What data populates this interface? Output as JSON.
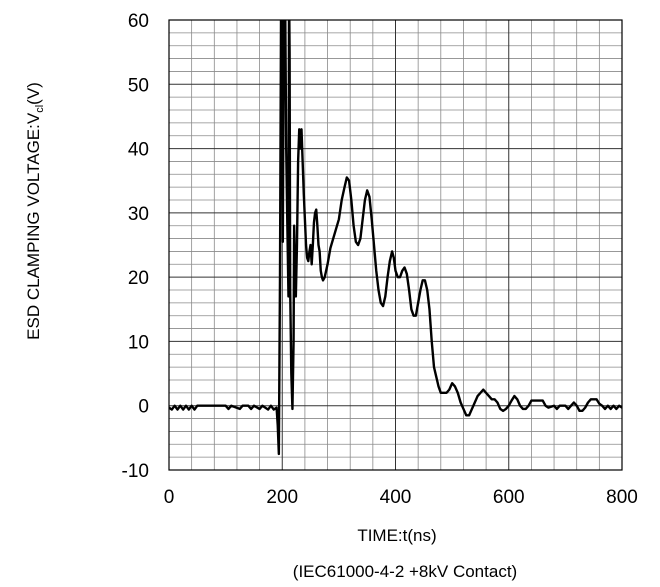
{
  "chart_data": {
    "type": "line",
    "title": "",
    "xlabel": "TIME:t(ns)",
    "ylabel": {
      "main": "ESD CLAMPING VOLTAGE:V",
      "subscript": "cl",
      "suffix": "(V)"
    },
    "note": "(IEC61000-4-2 +8kV Contact)",
    "xlim": [
      0,
      800
    ],
    "ylim": [
      -10,
      60
    ],
    "x_ticks": [
      "0",
      "200",
      "400",
      "600",
      "800"
    ],
    "y_ticks": [
      "-10",
      "0",
      "10",
      "20",
      "30",
      "40",
      "50",
      "60"
    ],
    "grid": true,
    "minor_grid": {
      "x_step": 40,
      "y_step": 2
    },
    "major_grid": {
      "x_step": 200,
      "y_step": 10
    },
    "line_color": "#000000",
    "series": [
      {
        "name": "",
        "points": [
          [
            0,
            -0.3
          ],
          [
            5,
            -0.6
          ],
          [
            10,
            0
          ],
          [
            15,
            -0.6
          ],
          [
            20,
            0
          ],
          [
            25,
            -0.6
          ],
          [
            30,
            0
          ],
          [
            35,
            -0.6
          ],
          [
            40,
            0
          ],
          [
            45,
            -0.6
          ],
          [
            50,
            0
          ],
          [
            100,
            0
          ],
          [
            105,
            -0.5
          ],
          [
            110,
            0
          ],
          [
            125,
            -0.5
          ],
          [
            130,
            0
          ],
          [
            140,
            0
          ],
          [
            145,
            -0.5
          ],
          [
            150,
            0
          ],
          [
            160,
            -0.5
          ],
          [
            165,
            0
          ],
          [
            175,
            -0.6
          ],
          [
            180,
            0
          ],
          [
            185,
            -0.6
          ],
          [
            190,
            -0.3
          ],
          [
            192,
            -3
          ],
          [
            194,
            -7.5
          ],
          [
            196,
            20
          ],
          [
            198,
            65
          ],
          [
            200,
            65
          ],
          [
            201,
            25.5
          ],
          [
            203,
            65
          ],
          [
            205,
            65
          ],
          [
            207,
            40
          ],
          [
            209,
            28
          ],
          [
            211,
            17
          ],
          [
            212,
            65
          ],
          [
            213,
            55
          ],
          [
            214,
            18
          ],
          [
            216,
            5
          ],
          [
            218,
            -0.5
          ],
          [
            220,
            10
          ],
          [
            221,
            28
          ],
          [
            223,
            20
          ],
          [
            224,
            17
          ],
          [
            226,
            25
          ],
          [
            228,
            38
          ],
          [
            230,
            43
          ],
          [
            232,
            40
          ],
          [
            234,
            43
          ],
          [
            236,
            38
          ],
          [
            238,
            33
          ],
          [
            240,
            29
          ],
          [
            242,
            25
          ],
          [
            244,
            23
          ],
          [
            246,
            22.5
          ],
          [
            248,
            24
          ],
          [
            250,
            25
          ],
          [
            252,
            22
          ],
          [
            254,
            25
          ],
          [
            256,
            28.5
          ],
          [
            258,
            30
          ],
          [
            260,
            30.5
          ],
          [
            262,
            28
          ],
          [
            264,
            25
          ],
          [
            266,
            24
          ],
          [
            268,
            21
          ],
          [
            270,
            20
          ],
          [
            272,
            19.5
          ],
          [
            275,
            20
          ],
          [
            280,
            22
          ],
          [
            285,
            24.5
          ],
          [
            290,
            26
          ],
          [
            295,
            27.5
          ],
          [
            300,
            29
          ],
          [
            305,
            32
          ],
          [
            310,
            34
          ],
          [
            314,
            35.5
          ],
          [
            318,
            35
          ],
          [
            322,
            32
          ],
          [
            326,
            28
          ],
          [
            330,
            25.5
          ],
          [
            334,
            25
          ],
          [
            338,
            26
          ],
          [
            342,
            29
          ],
          [
            346,
            32
          ],
          [
            350,
            33.5
          ],
          [
            354,
            32.5
          ],
          [
            358,
            29
          ],
          [
            362,
            25
          ],
          [
            366,
            21
          ],
          [
            370,
            18
          ],
          [
            374,
            16
          ],
          [
            378,
            15.5
          ],
          [
            382,
            17
          ],
          [
            386,
            20
          ],
          [
            390,
            22.5
          ],
          [
            394,
            24
          ],
          [
            397,
            23
          ],
          [
            400,
            21
          ],
          [
            404,
            20
          ],
          [
            408,
            20
          ],
          [
            412,
            21
          ],
          [
            416,
            21.5
          ],
          [
            420,
            20.5
          ],
          [
            424,
            18
          ],
          [
            428,
            15
          ],
          [
            432,
            14
          ],
          [
            436,
            14
          ],
          [
            440,
            16
          ],
          [
            444,
            18
          ],
          [
            448,
            19.5
          ],
          [
            452,
            19.5
          ],
          [
            456,
            18
          ],
          [
            460,
            15
          ],
          [
            464,
            10
          ],
          [
            468,
            6
          ],
          [
            472,
            4.5
          ],
          [
            476,
            3
          ],
          [
            480,
            2
          ],
          [
            490,
            2
          ],
          [
            495,
            2.5
          ],
          [
            500,
            3.5
          ],
          [
            505,
            3
          ],
          [
            510,
            2
          ],
          [
            515,
            0.5
          ],
          [
            520,
            -0.5
          ],
          [
            525,
            -1.5
          ],
          [
            530,
            -1.5
          ],
          [
            535,
            -0.5
          ],
          [
            540,
            0.5
          ],
          [
            545,
            1.5
          ],
          [
            550,
            2
          ],
          [
            555,
            2.5
          ],
          [
            560,
            2
          ],
          [
            565,
            1.5
          ],
          [
            570,
            1
          ],
          [
            575,
            1
          ],
          [
            580,
            0.5
          ],
          [
            585,
            -0.5
          ],
          [
            590,
            -0.8
          ],
          [
            595,
            -0.5
          ],
          [
            600,
            0
          ],
          [
            605,
            0.8
          ],
          [
            610,
            1.5
          ],
          [
            615,
            1
          ],
          [
            620,
            0
          ],
          [
            625,
            -0.5
          ],
          [
            630,
            -0.5
          ],
          [
            635,
            0
          ],
          [
            640,
            0.8
          ],
          [
            660,
            0.8
          ],
          [
            665,
            0
          ],
          [
            670,
            -0.3
          ],
          [
            680,
            0
          ],
          [
            685,
            -0.5
          ],
          [
            690,
            0
          ],
          [
            700,
            0
          ],
          [
            705,
            -0.5
          ],
          [
            710,
            0
          ],
          [
            715,
            0.5
          ],
          [
            720,
            0
          ],
          [
            725,
            -0.8
          ],
          [
            730,
            -0.8
          ],
          [
            735,
            -0.3
          ],
          [
            740,
            0.5
          ],
          [
            745,
            1
          ],
          [
            755,
            1
          ],
          [
            760,
            0.3
          ],
          [
            765,
            0
          ],
          [
            770,
            -0.5
          ],
          [
            775,
            0
          ],
          [
            780,
            -0.5
          ],
          [
            785,
            0
          ],
          [
            790,
            -0.5
          ],
          [
            795,
            0
          ],
          [
            800,
            -0.3
          ]
        ]
      }
    ]
  }
}
